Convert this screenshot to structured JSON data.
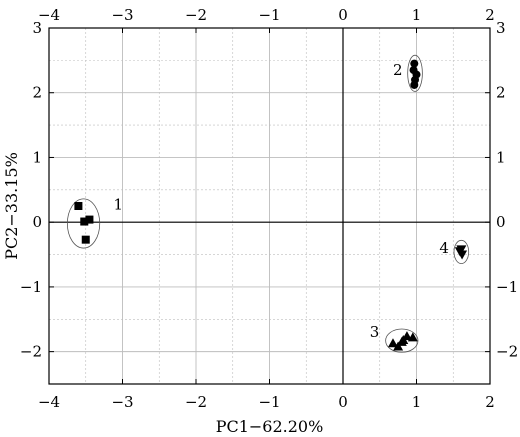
{
  "chart_data": {
    "type": "scatter",
    "xlabel": "PC1−62.20%",
    "ylabel": "PC2−33.15%",
    "xlim": [
      -4,
      2
    ],
    "ylim": [
      -2.5,
      3
    ],
    "x_ticks": [
      "−4",
      "−3",
      "−2",
      "−1",
      "0",
      "1",
      "2"
    ],
    "y_ticks": [
      "3",
      "2",
      "1",
      "0",
      "−1",
      "−2"
    ],
    "x_tick_values": [
      -4,
      -3,
      -2,
      -1,
      0,
      1,
      2
    ],
    "y_tick_values": [
      3,
      2,
      1,
      0,
      -1,
      -2
    ],
    "grid": true,
    "zero_lines": true,
    "series": [
      {
        "label": "1",
        "marker": "square",
        "points": [
          [
            -3.6,
            0.25
          ],
          [
            -3.52,
            0.01
          ],
          [
            -3.45,
            0.04
          ],
          [
            -3.5,
            -0.27
          ]
        ],
        "ellipse": {
          "cx": -3.53,
          "cy": -0.02,
          "rx": 0.22,
          "ry": 0.38
        }
      },
      {
        "label": "2",
        "marker": "circle",
        "points": [
          [
            0.97,
            2.45
          ],
          [
            0.96,
            2.35
          ],
          [
            1.0,
            2.28
          ],
          [
            0.98,
            2.2
          ],
          [
            0.97,
            2.12
          ]
        ],
        "ellipse": {
          "cx": 0.98,
          "cy": 2.3,
          "rx": 0.1,
          "ry": 0.28
        }
      },
      {
        "label": "3",
        "marker": "triangle-up",
        "points": [
          [
            0.68,
            -1.87
          ],
          [
            0.75,
            -1.92
          ],
          [
            0.8,
            -1.85
          ],
          [
            0.87,
            -1.76
          ],
          [
            0.95,
            -1.78
          ],
          [
            0.82,
            -1.82
          ]
        ],
        "ellipse": {
          "cx": 0.8,
          "cy": -1.83,
          "rx": 0.22,
          "ry": 0.18
        }
      },
      {
        "label": "4",
        "marker": "triangle-down",
        "points": [
          [
            1.59,
            -0.45
          ],
          [
            1.62,
            -0.5
          ],
          [
            1.61,
            -0.42
          ]
        ],
        "ellipse": {
          "cx": 1.61,
          "cy": -0.46,
          "rx": 0.1,
          "ry": 0.18
        }
      }
    ],
    "colors": {
      "marker": "#000000",
      "grid": "#bdbdbd",
      "axis": "#000000",
      "ellipse": "#555555"
    }
  }
}
